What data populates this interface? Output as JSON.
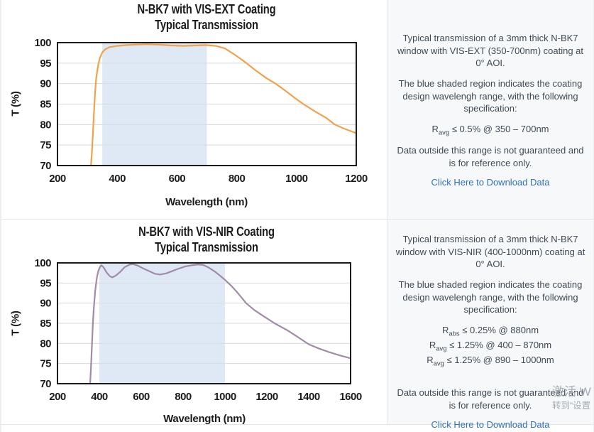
{
  "watermark": {
    "line1": "激活 W",
    "line2": "转到“设置"
  },
  "panels": [
    {
      "chart_title_line1": "N-BK7 with VIS-EXT Coating",
      "chart_title_line2": "Typical Transmission",
      "xlabel": "Wavelength (nm)",
      "ylabel": "T (%)",
      "description": "Typical transmission of a 3mm thick N-BK7 window with VIS-EXT (350-700nm) coating at 0° AOI.",
      "shaded_note": "The blue shaded region indicates the coating design wavelengh range, with the following specification:",
      "specs": [
        {
          "symbol": "R",
          "subscript": "avg",
          "condition": " ≤ 0.5% @ 350 – 700nm"
        }
      ],
      "disclaimer": "Data outside this range is not guaranteed and is for reference only.",
      "download_link": "Click Here to Download Data"
    },
    {
      "chart_title_line1": "N-BK7 with VIS-NIR Coating",
      "chart_title_line2": "Typical Transmission",
      "xlabel": "Wavelength (nm)",
      "ylabel": "T (%)",
      "description": "Typical transmission of a 3mm thick N-BK7 window with VIS-NIR (400-1000nm) coating at 0° AOI.",
      "shaded_note": "The blue shaded region indicates the coating design wavelengh range, with the following specification:",
      "specs": [
        {
          "symbol": "R",
          "subscript": "abs",
          "condition": " ≤ 0.25% @ 880nm"
        },
        {
          "symbol": "R",
          "subscript": "avg",
          "condition": " ≤ 1.25% @ 400 – 870nm"
        },
        {
          "symbol": "R",
          "subscript": "avg",
          "condition": " ≤ 1.25% @ 890 – 1000nm"
        }
      ],
      "disclaimer": "Data outside this range is not guaranteed and is for reference only.",
      "download_link": "Click Here to Download Data"
    }
  ],
  "chart_data": [
    {
      "type": "line",
      "title": "N-BK7 with VIS-EXT Coating",
      "subtitle": "Typical Transmission",
      "xlabel": "Wavelength (nm)",
      "ylabel": "T (%)",
      "xlim": [
        200,
        1200
      ],
      "ylim": [
        70,
        100
      ],
      "xticks": [
        200,
        400,
        600,
        800,
        1000,
        1200
      ],
      "yticks": [
        70,
        75,
        80,
        85,
        90,
        95,
        100
      ],
      "grid": "horizontal",
      "legend": "none",
      "shaded_region": {
        "x_start": 350,
        "x_end": 700,
        "color": "#DFE9F5"
      },
      "grid_color": "#D8DADC",
      "border_color": "#1B1B1B",
      "series": [
        {
          "name": "transmission",
          "color": "#F0A24C",
          "x": [
            312,
            315,
            318,
            322,
            326,
            330,
            336,
            342,
            350,
            360,
            375,
            400,
            430,
            460,
            500,
            540,
            580,
            620,
            660,
            700,
            730,
            760,
            790,
            810,
            832,
            860,
            900,
            930,
            960,
            1000,
            1023,
            1060,
            1100,
            1128,
            1160,
            1200
          ],
          "y": [
            70,
            73,
            77,
            83,
            88,
            91.5,
            94.5,
            96.3,
            97.6,
            98.4,
            98.9,
            99.2,
            99.4,
            99.5,
            99.6,
            99.5,
            99.3,
            99.2,
            99.3,
            99.4,
            99.2,
            98.6,
            97.2,
            96.2,
            95,
            93.4,
            91.3,
            90,
            88.4,
            86.2,
            85,
            83.3,
            81.6,
            80,
            79,
            77.9
          ]
        }
      ]
    },
    {
      "type": "line",
      "title": "N-BK7 with VIS-NIR Coating",
      "subtitle": "Typical Transmission",
      "xlabel": "Wavelength (nm)",
      "ylabel": "T (%)",
      "xlim": [
        200,
        1600
      ],
      "ylim": [
        70,
        100
      ],
      "xticks": [
        200,
        400,
        600,
        800,
        1000,
        1200,
        1400,
        1600
      ],
      "yticks": [
        70,
        75,
        80,
        85,
        90,
        95,
        100
      ],
      "grid": "horizontal",
      "legend": "none",
      "shaded_region": {
        "x_start": 400,
        "x_end": 1000,
        "color": "#DFE9F5"
      },
      "grid_color": "#D8DADC",
      "border_color": "#1B1B1B",
      "series": [
        {
          "name": "transmission",
          "color": "#A18CA6",
          "x": [
            356,
            360,
            364,
            369,
            374,
            380,
            387,
            394,
            402,
            410,
            420,
            435,
            450,
            462,
            480,
            500,
            520,
            545,
            560,
            580,
            610,
            640,
            665,
            690,
            720,
            750,
            780,
            810,
            840,
            870,
            895,
            920,
            950,
            975,
            1000,
            1030,
            1060,
            1101,
            1140,
            1180,
            1237,
            1300,
            1350,
            1400,
            1450,
            1500,
            1550,
            1600
          ],
          "y": [
            70,
            74,
            79,
            85,
            89,
            93,
            96,
            97.8,
            98.9,
            99.4,
            98.9,
            97.6,
            96.7,
            96.4,
            96.9,
            97.8,
            98.9,
            99.6,
            99.7,
            99.4,
            98.6,
            97.9,
            97.3,
            97.1,
            97.4,
            98,
            98.6,
            99.1,
            99.4,
            99.6,
            99.5,
            98.9,
            97.9,
            96.9,
            95.8,
            94.3,
            92.6,
            90,
            88.3,
            86.9,
            85,
            83.2,
            81.5,
            79.8,
            78.7,
            77.8,
            77,
            76.3
          ]
        }
      ]
    }
  ]
}
